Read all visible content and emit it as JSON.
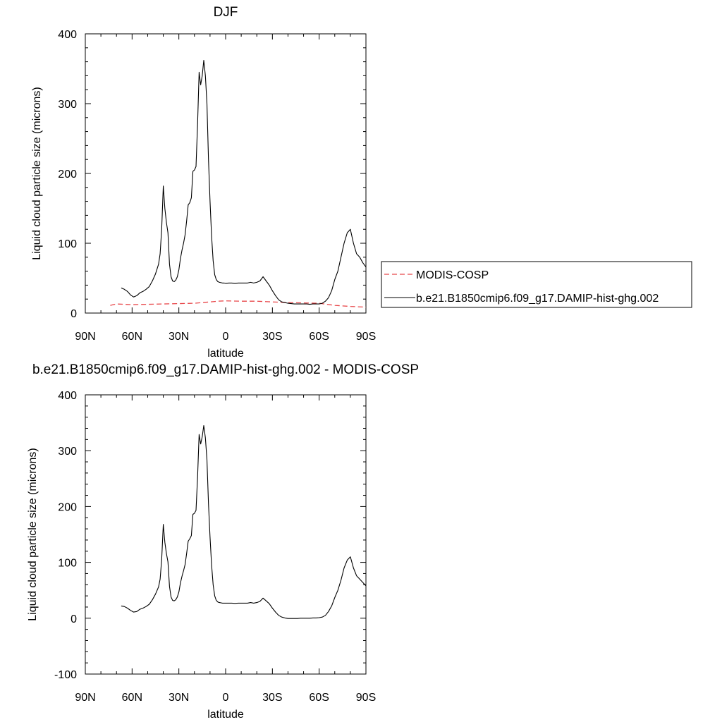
{
  "chart_data": [
    {
      "type": "line",
      "title": "DJF",
      "xlabel": "latitude",
      "ylabel": "Liquid cloud particle size (microns)",
      "xlim": [
        -90,
        90
      ],
      "ylim": [
        0,
        400
      ],
      "xticks": [
        -90,
        -60,
        -30,
        0,
        30,
        60,
        90
      ],
      "xtick_labels": [
        "90N",
        "60N",
        "30N",
        "0",
        "30S",
        "60S",
        "90S"
      ],
      "yticks": [
        0,
        100,
        200,
        300,
        400
      ],
      "ytick_labels": [
        "0",
        "100",
        "200",
        "300",
        "400"
      ],
      "grid": false,
      "legend": {
        "placement": "right",
        "entries": [
          "MODIS-COSP",
          "b.e21.B1850cmip6.f09_g17.DAMIP-hist-ghg.002"
        ]
      },
      "series": [
        {
          "name": "MODIS-COSP",
          "style": "dashed",
          "color": "#e8474a",
          "x": [
            -74,
            -70,
            -60,
            -50,
            -40,
            -30,
            -20,
            -10,
            -5,
            0,
            10,
            20,
            30,
            40,
            50,
            60,
            70,
            80,
            90
          ],
          "y": [
            11,
            13,
            12,
            12.5,
            13,
            13.5,
            14,
            16,
            17,
            17.5,
            17,
            17,
            16,
            15,
            14.5,
            14,
            11,
            9.5,
            8.5
          ]
        },
        {
          "name": "b.e21.B1850cmip6.f09_g17.DAMIP-hist-ghg.002",
          "style": "solid",
          "color": "#000000",
          "x": [
            -67,
            -65,
            -63,
            -61,
            -59,
            -57,
            -55,
            -53,
            -51,
            -49,
            -47,
            -45,
            -43,
            -42,
            -41,
            -40,
            -39,
            -38,
            -37,
            -36,
            -35,
            -34,
            -33,
            -32,
            -31,
            -30,
            -29,
            -28,
            -27,
            -26,
            -25,
            -24,
            -23,
            -22,
            -21,
            -20,
            -19,
            -18,
            -17,
            -16,
            -15,
            -14,
            -13,
            -12,
            -11,
            -10,
            -9,
            -8,
            -7,
            -6,
            -5,
            -4,
            -3,
            -2,
            -1,
            0,
            2,
            4,
            6,
            8,
            10,
            12,
            14,
            16,
            18,
            20,
            22,
            24,
            26,
            28,
            30,
            32,
            34,
            36,
            38,
            40,
            42,
            44,
            46,
            48,
            50,
            52,
            54,
            56,
            58,
            60,
            62,
            64,
            66,
            68,
            70,
            72,
            74,
            76,
            78,
            80,
            82,
            84,
            86,
            88,
            90
          ],
          "y": [
            36,
            34,
            31,
            26,
            23,
            25,
            29,
            31,
            34,
            38,
            46,
            56,
            70,
            85,
            120,
            182,
            150,
            130,
            115,
            70,
            52,
            46,
            45,
            47,
            52,
            62,
            78,
            90,
            100,
            112,
            132,
            155,
            158,
            165,
            203,
            205,
            210,
            270,
            345,
            327,
            340,
            362,
            340,
            300,
            220,
            160,
            110,
            75,
            55,
            48,
            45,
            44,
            43.5,
            43,
            43,
            42.5,
            43,
            43,
            42.5,
            43,
            43,
            43,
            43,
            44,
            43,
            44,
            46,
            52,
            46,
            40,
            32,
            25,
            19,
            16,
            15,
            14,
            13.5,
            13,
            13,
            13,
            13,
            13,
            12.5,
            13,
            13,
            13,
            14,
            17,
            22,
            32,
            48,
            60,
            80,
            100,
            115,
            120,
            100,
            85,
            80,
            72,
            66
          ]
        }
      ]
    },
    {
      "type": "line",
      "title": "b.e21.B1850cmip6.f09_g17.DAMIP-hist-ghg.002 - MODIS-COSP",
      "xlabel": "latitude",
      "ylabel": "Liquid cloud particle size (microns)",
      "xlim": [
        -90,
        90
      ],
      "ylim": [
        -100,
        400
      ],
      "xticks": [
        -90,
        -60,
        -30,
        0,
        30,
        60,
        90
      ],
      "xtick_labels": [
        "90N",
        "60N",
        "30N",
        "0",
        "30S",
        "60S",
        "90S"
      ],
      "yticks": [
        -100,
        0,
        100,
        200,
        300,
        400
      ],
      "ytick_labels": [
        "-100",
        "0",
        "100",
        "200",
        "300",
        "400"
      ],
      "grid": false,
      "series": [
        {
          "style": "solid",
          "color": "#000000",
          "x": [
            -67,
            -65,
            -63,
            -61,
            -59,
            -57,
            -55,
            -53,
            -51,
            -49,
            -47,
            -45,
            -43,
            -42,
            -41,
            -40,
            -39,
            -38,
            -37,
            -36,
            -35,
            -34,
            -33,
            -32,
            -31,
            -30,
            -29,
            -28,
            -27,
            -26,
            -25,
            -24,
            -23,
            -22,
            -21,
            -20,
            -19,
            -18,
            -17,
            -16,
            -15,
            -14,
            -13,
            -12,
            -11,
            -10,
            -9,
            -8,
            -7,
            -6,
            -5,
            -4,
            -3,
            -2,
            -1,
            0,
            2,
            4,
            6,
            8,
            10,
            12,
            14,
            16,
            18,
            20,
            22,
            24,
            26,
            28,
            30,
            32,
            34,
            36,
            38,
            40,
            42,
            44,
            46,
            48,
            50,
            52,
            54,
            56,
            58,
            60,
            62,
            64,
            66,
            68,
            70,
            72,
            74,
            76,
            78,
            80,
            82,
            84,
            86,
            88,
            90
          ],
          "y": [
            22,
            21,
            18,
            14,
            11,
            12,
            16,
            18,
            21,
            25,
            33,
            43,
            56,
            70,
            105,
            168,
            136,
            116,
            101,
            57,
            38,
            32,
            31,
            33,
            38,
            47,
            63,
            75,
            85,
            96,
            116,
            138,
            142,
            148,
            186,
            188,
            193,
            252,
            329,
            312,
            325,
            345,
            323,
            284,
            205,
            145,
            95,
            60,
            40,
            32,
            29,
            28,
            27.5,
            27,
            27,
            27,
            27,
            27,
            26.5,
            27,
            27,
            27,
            27,
            28,
            27,
            28,
            30,
            36,
            31,
            26,
            18,
            11,
            5,
            2,
            0.5,
            -0.5,
            -0.5,
            -0.5,
            -0.5,
            0,
            0,
            0,
            0,
            0.5,
            0.5,
            1,
            2,
            5,
            12,
            22,
            37,
            50,
            68,
            90,
            104,
            110,
            90,
            76,
            70,
            64,
            58
          ]
        }
      ]
    }
  ]
}
